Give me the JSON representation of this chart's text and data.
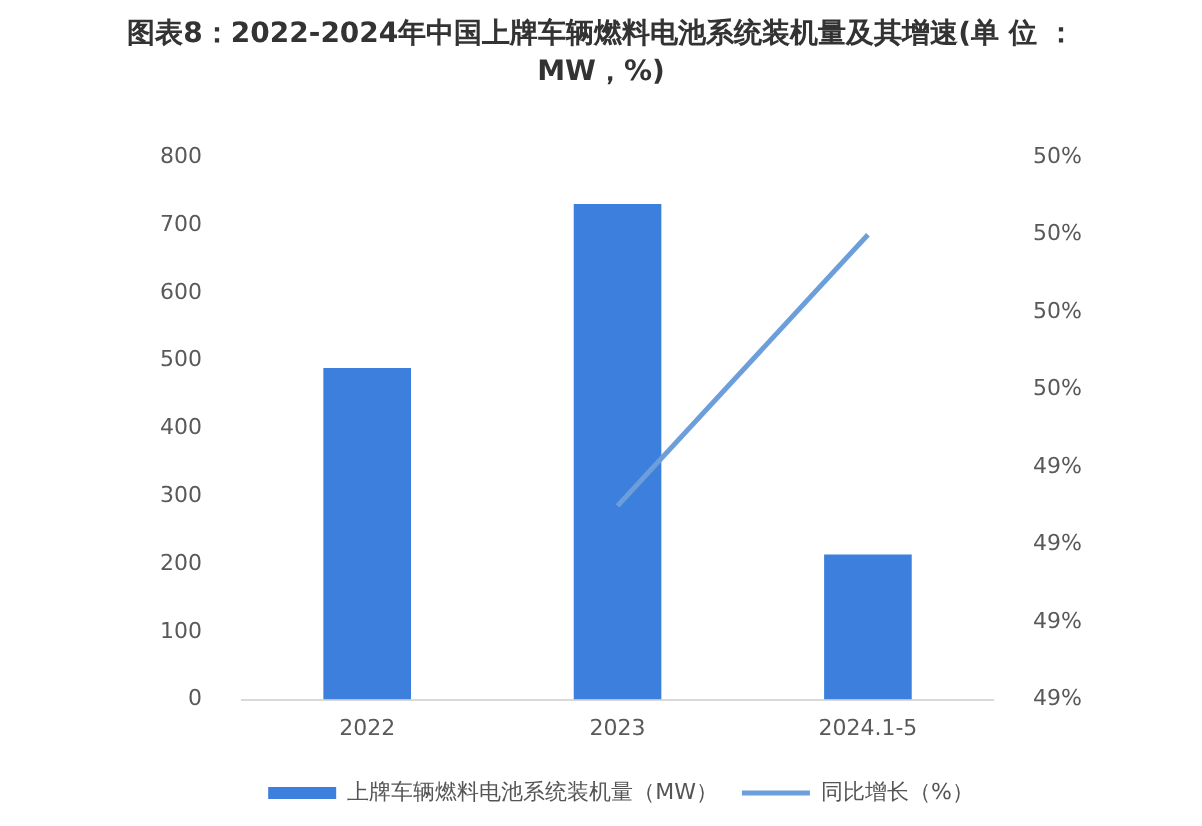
{
  "chart_data": {
    "type": "bar",
    "title": "图表8：2022-2024年中国上牌车辆燃料电池系统装机量及其增速(单 位 ：MW，%)",
    "categories": [
      "2022",
      "2023",
      "2024.1-5"
    ],
    "series": [
      {
        "name": "上牌车辆燃料电池系统装机量（MW）",
        "color": "#3d7fdc",
        "values": [
          489,
          731,
          214
        ]
      },
      {
        "name": "同比增长（%）",
        "type": "line",
        "axis": "y2",
        "color": "#6d9edc",
        "values": [
          null,
          49.35,
          49.7
        ]
      }
    ],
    "ylim": [
      0,
      800
    ],
    "yticks": [
      0,
      100,
      200,
      300,
      400,
      500,
      600,
      700,
      800
    ],
    "y2lim": [
      49.1,
      49.8
    ],
    "y2ticks": [
      {
        "value": 49.1,
        "label": "49%"
      },
      {
        "value": 49.2,
        "label": "49%"
      },
      {
        "value": 49.3,
        "label": "49%"
      },
      {
        "value": 49.4,
        "label": "49%"
      },
      {
        "value": 49.5,
        "label": "50%"
      },
      {
        "value": 49.6,
        "label": "50%"
      },
      {
        "value": 49.7,
        "label": "50%"
      },
      {
        "value": 49.8,
        "label": "50%"
      }
    ],
    "grid": false,
    "legend": "bottom"
  }
}
